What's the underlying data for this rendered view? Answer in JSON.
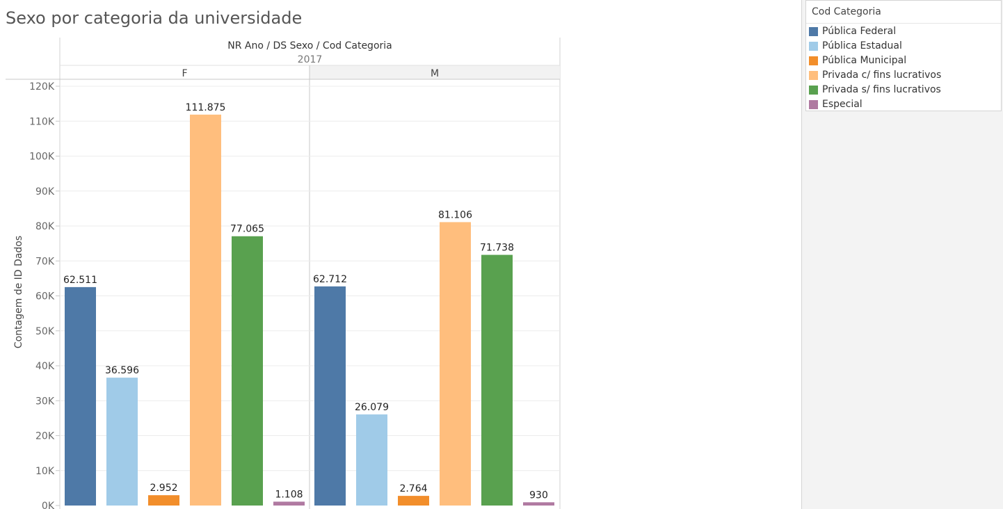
{
  "title": "Sexo por categoria da universidade",
  "legend": {
    "title": "Cod Categoria",
    "items": [
      {
        "label": "Pública Federal",
        "color": "#4e79a7"
      },
      {
        "label": "Pública Estadual",
        "color": "#a0cbe8"
      },
      {
        "label": "Pública Municipal",
        "color": "#f28e2b"
      },
      {
        "label": "Privada c/ fins lucrativos",
        "color": "#ffbe7d"
      },
      {
        "label": "Privada s/ fins lucrativos",
        "color": "#59a14f"
      },
      {
        "label": "Especial",
        "color": "#b07aa1"
      }
    ]
  },
  "chart_data": {
    "type": "bar",
    "title": "Sexo por categoria da universidade",
    "column_header": "NR Ano / DS Sexo / Cod Categoria",
    "year": "2017",
    "ylabel": "Contagem de ID Dados",
    "ylim": [
      0,
      120000
    ],
    "y_ticks": [
      "0K",
      "10K",
      "20K",
      "30K",
      "40K",
      "50K",
      "60K",
      "70K",
      "80K",
      "90K",
      "100K",
      "110K",
      "120K"
    ],
    "categories": [
      "Pública Federal",
      "Pública Estadual",
      "Pública Municipal",
      "Privada c/ fins lucrativos",
      "Privada s/ fins lucrativos",
      "Especial"
    ],
    "panels": [
      {
        "name": "F",
        "values": [
          62511,
          36596,
          2952,
          111875,
          77065,
          1108
        ],
        "labels": [
          "62.511",
          "36.596",
          "2.952",
          "111.875",
          "77.065",
          "1.108"
        ]
      },
      {
        "name": "M",
        "values": [
          62712,
          26079,
          2764,
          81106,
          71738,
          930
        ],
        "labels": [
          "62.712",
          "26.079",
          "2.764",
          "81.106",
          "71.738",
          "930"
        ]
      }
    ],
    "grid": true,
    "legend_position": "top-right"
  }
}
